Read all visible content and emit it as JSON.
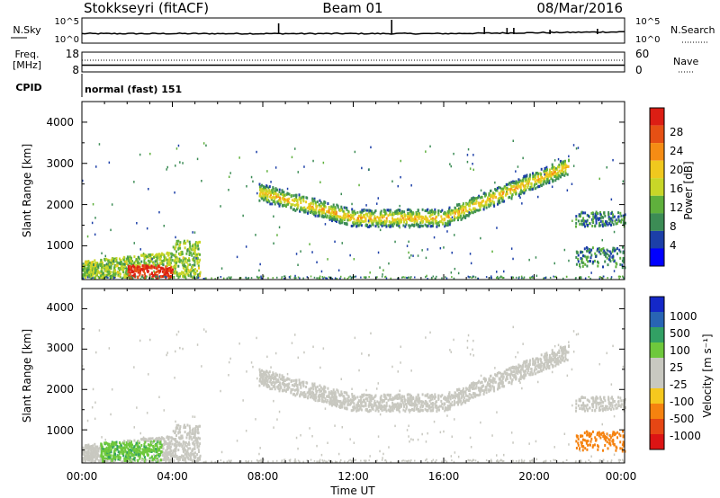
{
  "header": {
    "station": "Stokkseyri (fitACF)",
    "beam": "Beam 01",
    "date": "08/Mar/2016"
  },
  "noise_panel": {
    "left_label": "N.Sky",
    "right_label": "N.Search",
    "left_ticks": [
      "10^5",
      "10^0"
    ],
    "right_ticks": [
      "10^5",
      "10^0"
    ]
  },
  "freq_panel": {
    "left_label_line1": "Freq.",
    "left_label_line2": "[MHz]",
    "right_label": "Nave",
    "left_ticks": [
      "18",
      "8"
    ],
    "right_ticks": [
      "60",
      "0"
    ]
  },
  "cpid_panel": {
    "label": "CPID",
    "mode": "normal (fast) 151"
  },
  "power_panel": {
    "ylabel": "Slant Range [km]",
    "yticks": [
      "4000",
      "3000",
      "2000",
      "1000"
    ],
    "colorbar_label": "Power [dB]",
    "colorbar_ticks": [
      "28",
      "24",
      "20",
      "16",
      "12",
      "8",
      "4"
    ],
    "colors": [
      "#0000ff",
      "#1c3fa8",
      "#3c8c55",
      "#5fb03c",
      "#c8d628",
      "#f0c81e",
      "#f58c14",
      "#e65014",
      "#dc1e14"
    ]
  },
  "velocity_panel": {
    "ylabel": "Slant Range [km]",
    "yticks": [
      "4000",
      "3000",
      "2000",
      "1000"
    ],
    "colorbar_label": "Velocity [m s⁻¹]",
    "colorbar_ticks": [
      "1000",
      "500",
      "100",
      "25",
      "-25",
      "-100",
      "-500",
      "-1000"
    ],
    "colors": [
      "#1428c8",
      "#2864b4",
      "#32a064",
      "#6ec83c",
      "#c8c8c0",
      "#c8c8c0",
      "#f5c81e",
      "#f5820f",
      "#e64614",
      "#dc1414"
    ]
  },
  "xaxis": {
    "label": "Time UT",
    "ticks": [
      "00:00",
      "04:00",
      "08:00",
      "12:00",
      "16:00",
      "20:00",
      "00:00"
    ]
  },
  "chart_data": {
    "type": "heatmap",
    "title": "Stokkseyri (fitACF) Beam 01 08/Mar/2016",
    "xlabel": "Time UT",
    "ylabel": "Slant Range [km]",
    "xlim": [
      0,
      24
    ],
    "ylim": [
      180,
      4500
    ],
    "grid": false,
    "power_bands": [
      {
        "name": "near_range_echo",
        "t0": 0.0,
        "t1": 5.2,
        "r0": 250,
        "r1": 1200,
        "power_db": [
          12,
          30
        ]
      },
      {
        "name": "main_arc",
        "t0": 7.8,
        "t1": 21.5,
        "r0": 1400,
        "r1": 3100,
        "power_db": [
          4,
          22
        ]
      },
      {
        "name": "late_patch",
        "t0": 21.8,
        "t1": 24.0,
        "r0": 500,
        "r1": 1900,
        "power_db": [
          4,
          16
        ]
      }
    ],
    "velocity_bands": [
      {
        "name": "near_range_echo",
        "t0": 0.0,
        "t1": 5.2,
        "r0": 250,
        "r1": 1200,
        "velocity": [
          -100,
          100
        ]
      },
      {
        "name": "main_arc",
        "t0": 7.8,
        "t1": 21.5,
        "r0": 1400,
        "r1": 3100,
        "velocity": [
          -25,
          25
        ]
      },
      {
        "name": "late_patch",
        "t0": 21.8,
        "t1": 24.0,
        "r0": 500,
        "r1": 1900,
        "velocity": [
          -500,
          25
        ]
      }
    ],
    "frequency_mhz": 10,
    "cpid": 151
  }
}
